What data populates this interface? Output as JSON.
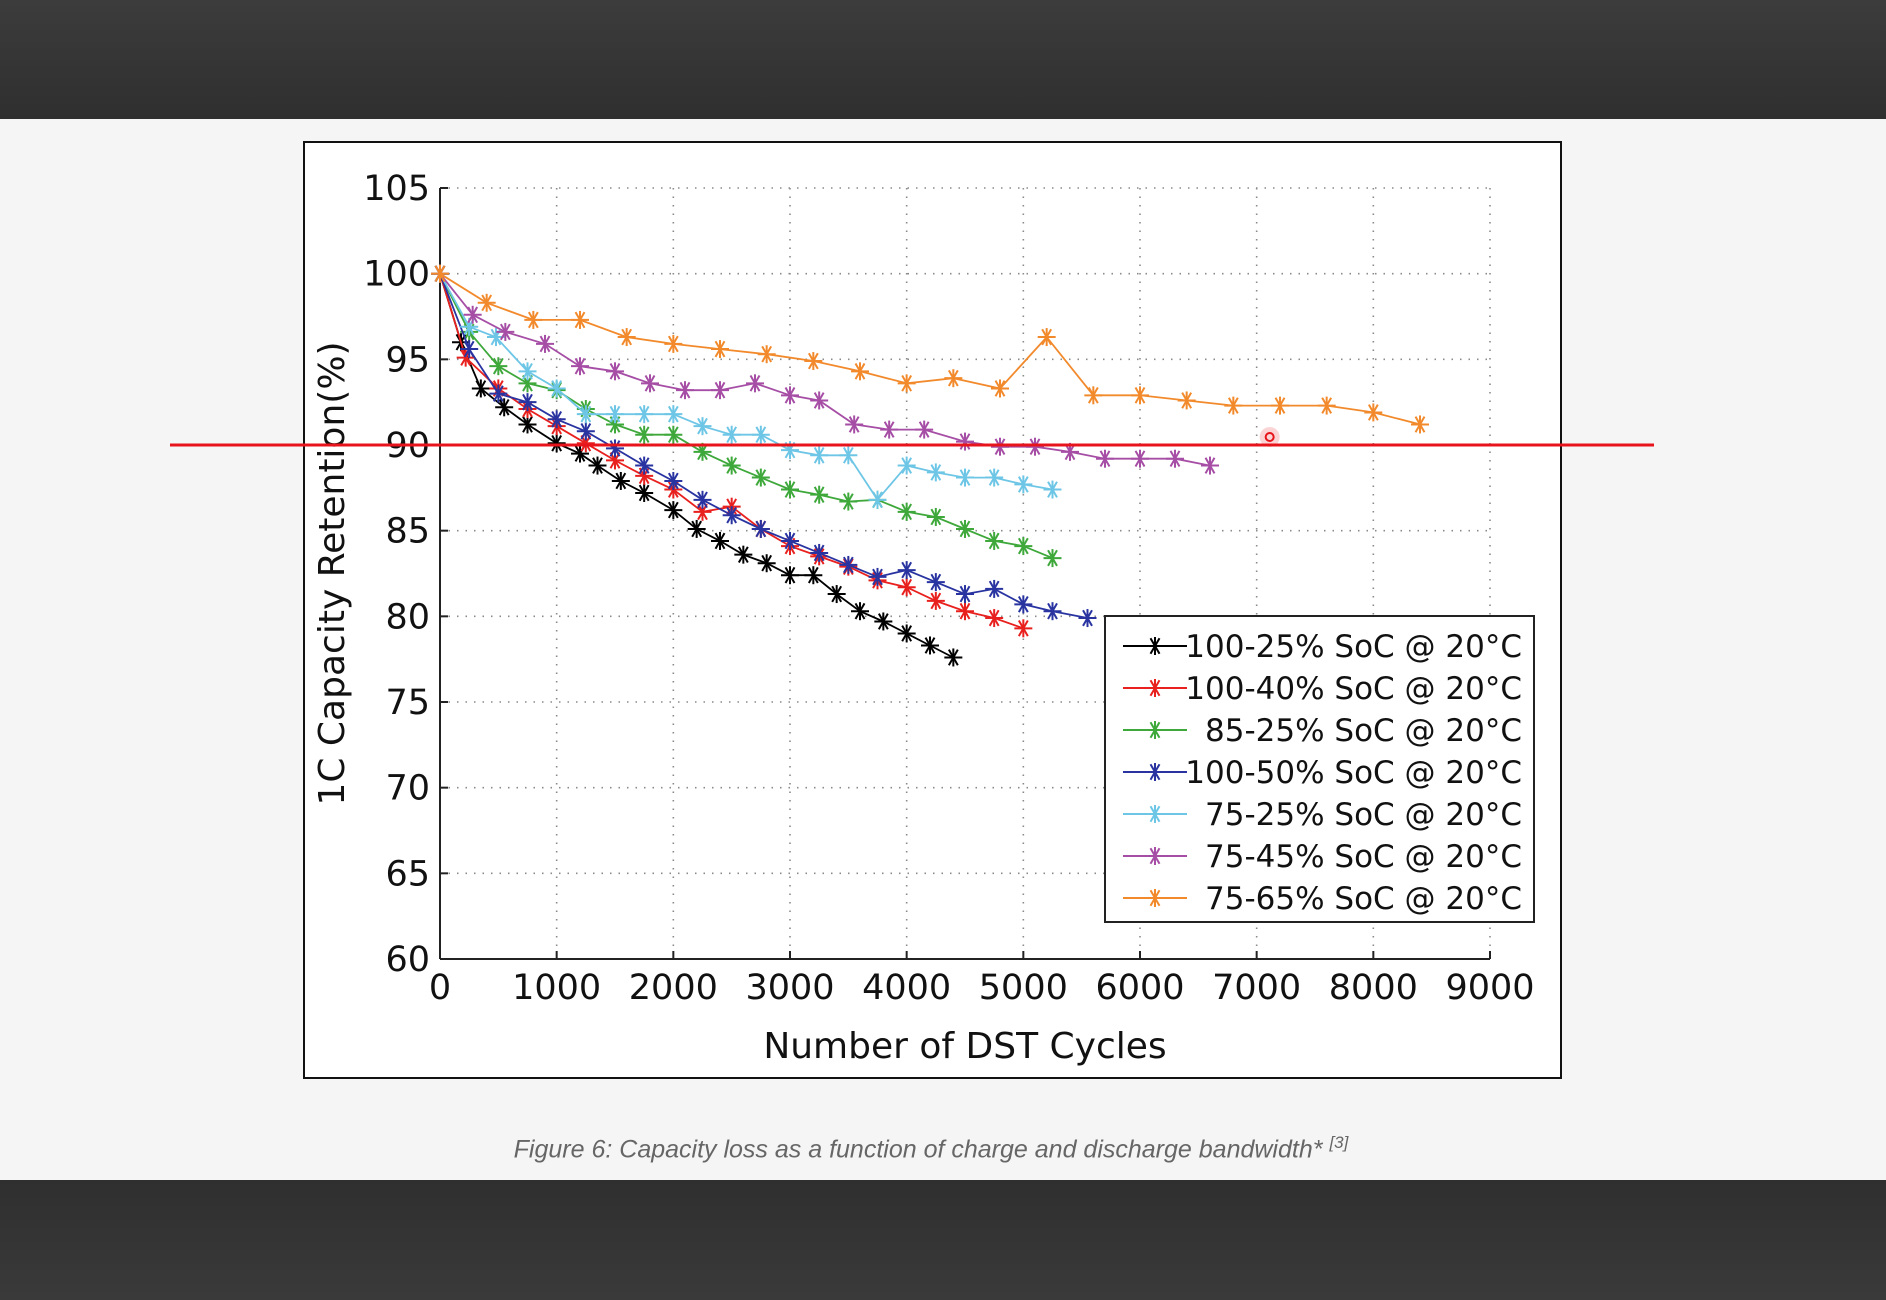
{
  "caption": {
    "text": "Figure 6: Capacity loss as a function of charge and discharge bandwidth*",
    "ref": "[3]"
  },
  "threshold_line": {
    "value": 90,
    "color": "#e8141b"
  },
  "chart_data": {
    "type": "line",
    "title": "",
    "xlabel": "Number of DST Cycles",
    "ylabel": "1C Capacity Retention(%)",
    "xlim": [
      0,
      9000
    ],
    "ylim": [
      60,
      105
    ],
    "xticks": [
      0,
      1000,
      2000,
      3000,
      4000,
      5000,
      6000,
      7000,
      8000,
      9000
    ],
    "yticks": [
      60,
      65,
      70,
      75,
      80,
      85,
      90,
      95,
      100,
      105
    ],
    "grid": true,
    "legend_position": "bottom-right",
    "series": [
      {
        "name": "100-25% SoC @ 20°C",
        "color": "#000000",
        "x": [
          0,
          180,
          350,
          550,
          750,
          1000,
          1200,
          1350,
          1550,
          1750,
          2000,
          2200,
          2400,
          2600,
          2800,
          3000,
          3200,
          3400,
          3600,
          3800,
          4000,
          4200,
          4400
        ],
        "y": [
          100,
          96,
          93.3,
          92.2,
          91.2,
          90.1,
          89.5,
          88.8,
          87.9,
          87.2,
          86.2,
          85.1,
          84.4,
          83.6,
          83.1,
          82.4,
          82.4,
          81.3,
          80.3,
          79.7,
          79,
          78.3,
          77.6
        ]
      },
      {
        "name": "100-40% SoC @ 20°C",
        "color": "#e8201e",
        "x": [
          0,
          220,
          500,
          750,
          1000,
          1250,
          1500,
          1750,
          2000,
          2250,
          2500,
          2750,
          3000,
          3250,
          3500,
          3750,
          4000,
          4250,
          4500,
          4750,
          5000
        ],
        "y": [
          100,
          95.1,
          93.3,
          92.1,
          91.1,
          90.1,
          89.1,
          88.2,
          87.4,
          86.1,
          86.4,
          85.1,
          84.1,
          83.5,
          82.9,
          82.1,
          81.7,
          80.9,
          80.3,
          79.9,
          79.3
        ]
      },
      {
        "name": "85-25% SoC @ 20°C",
        "color": "#3ea83b",
        "x": [
          0,
          250,
          500,
          750,
          1000,
          1250,
          1500,
          1750,
          2000,
          2250,
          2500,
          2750,
          3000,
          3250,
          3500,
          3750,
          4000,
          4250,
          4500,
          4750,
          5000,
          5250
        ],
        "y": [
          100,
          96.6,
          94.6,
          93.6,
          93.2,
          92.1,
          91.2,
          90.6,
          90.6,
          89.6,
          88.8,
          88.1,
          87.4,
          87.1,
          86.7,
          86.8,
          86.1,
          85.8,
          85.1,
          84.4,
          84.1,
          83.4
        ]
      },
      {
        "name": "100-50% SoC @ 20°C",
        "color": "#2934a1",
        "x": [
          0,
          250,
          500,
          750,
          1000,
          1250,
          1500,
          1750,
          2000,
          2250,
          2500,
          2750,
          3000,
          3250,
          3500,
          3750,
          4000,
          4250,
          4500,
          4750,
          5000,
          5250,
          5550
        ],
        "y": [
          100,
          95.6,
          93,
          92.5,
          91.5,
          90.8,
          89.8,
          88.8,
          87.9,
          86.8,
          85.9,
          85.1,
          84.4,
          83.7,
          83,
          82.3,
          82.7,
          82,
          81.3,
          81.6,
          80.7,
          80.3,
          79.9
        ]
      },
      {
        "name": "75-25% SoC @ 20°C",
        "color": "#6ec6e6",
        "x": [
          0,
          250,
          480,
          750,
          1000,
          1250,
          1500,
          1750,
          2000,
          2250,
          2500,
          2750,
          3000,
          3250,
          3500,
          3750,
          4000,
          4250,
          4500,
          4750,
          5000,
          5250
        ],
        "y": [
          100,
          96.9,
          96.3,
          94.3,
          93.3,
          91.8,
          91.8,
          91.8,
          91.8,
          91.1,
          90.6,
          90.6,
          89.7,
          89.4,
          89.4,
          86.8,
          88.8,
          88.4,
          88.1,
          88.1,
          87.7,
          87.4
        ]
      },
      {
        "name": "75-45% SoC @ 20°C",
        "color": "#a64ea5",
        "x": [
          0,
          280,
          560,
          900,
          1200,
          1500,
          1800,
          2100,
          2400,
          2700,
          3000,
          3250,
          3550,
          3850,
          4150,
          4500,
          4800,
          5100,
          5400,
          5700,
          6000,
          6300,
          6600
        ],
        "y": [
          100,
          97.6,
          96.6,
          95.9,
          94.6,
          94.3,
          93.6,
          93.2,
          93.2,
          93.6,
          92.9,
          92.6,
          91.2,
          90.9,
          90.9,
          90.2,
          89.9,
          89.9,
          89.6,
          89.2,
          89.2,
          89.2,
          88.8
        ]
      },
      {
        "name": "75-65% SoC @ 20°C",
        "color": "#f28a2c",
        "x": [
          0,
          400,
          800,
          1200,
          1600,
          2000,
          2400,
          2800,
          3200,
          3600,
          4000,
          4400,
          4800,
          5200,
          5600,
          6000,
          6400,
          6800,
          7200,
          7600,
          8000,
          8400
        ],
        "y": [
          100,
          98.3,
          97.3,
          97.3,
          96.3,
          95.9,
          95.6,
          95.3,
          94.9,
          94.3,
          93.6,
          93.9,
          93.3,
          96.3,
          92.9,
          92.9,
          92.6,
          92.3,
          92.3,
          92.3,
          91.9,
          91.2
        ]
      }
    ]
  }
}
